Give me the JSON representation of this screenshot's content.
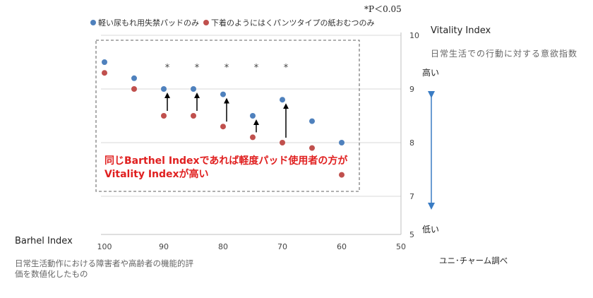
{
  "chart_data": {
    "type": "scatter",
    "significance_note": "*P＜0.05",
    "series": [
      {
        "name": "軽い尿もれ用失禁パッドのみ",
        "color": "#4f81bd",
        "x": [
          100,
          95,
          90,
          85,
          80,
          75,
          70,
          65,
          60
        ],
        "y": [
          9.5,
          9.2,
          9.0,
          9.0,
          8.9,
          8.5,
          8.8,
          8.4,
          8.0
        ]
      },
      {
        "name": "下着のようにはくパンツタイプの紙おむつのみ",
        "color": "#c0504d",
        "x": [
          100,
          95,
          90,
          85,
          80,
          75,
          70,
          65,
          60
        ],
        "y": [
          9.3,
          9.0,
          8.5,
          8.5,
          8.3,
          8.1,
          8.0,
          7.9,
          7.4
        ]
      }
    ],
    "significant_x": [
      90,
      85,
      80,
      75,
      70
    ],
    "x_ticks": [
      "100",
      "90",
      "80",
      "70",
      "60",
      "50"
    ],
    "y_ticks": [
      "10",
      "9",
      "8",
      "7",
      "5"
    ],
    "x_axis": {
      "title": "Barhel Index",
      "description": "日常生活動作における障害者や高齢者の機能的評価を数値化したもの",
      "reversed": true
    },
    "y_axis": {
      "title": "Vitality Index",
      "description": "日常生活での行動に対する意欲指数",
      "high_label": "高い",
      "low_label": "低い"
    },
    "annotation": "同じBarthel Indexであれば軽度パッド使用者の方がVitality Indexが高い",
    "source": "ユニ･チャーム調べ",
    "arrow_color": "#3a7cc4"
  }
}
